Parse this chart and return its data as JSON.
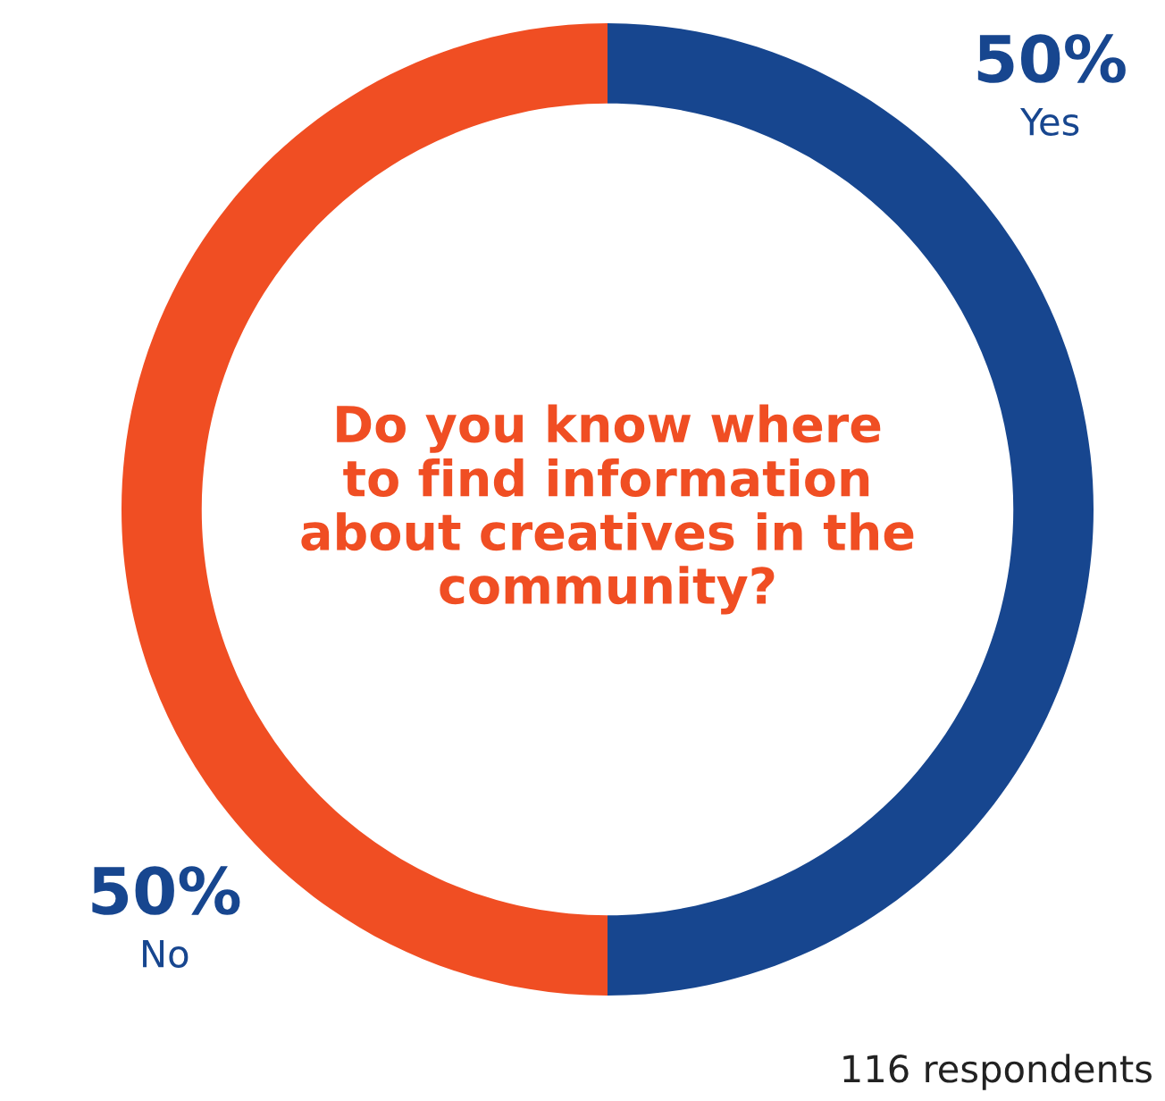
{
  "chart_data": {
    "type": "donut",
    "title": "Do you know where\nto find information\nabout creatives in the\ncommunity?",
    "categories": [
      "Yes",
      "No"
    ],
    "values": [
      50,
      50
    ],
    "colors": [
      "#17468f",
      "#f04e23"
    ],
    "value_labels": [
      "50%",
      "50%"
    ],
    "legend": false,
    "annotations": [
      "116 respondents"
    ]
  }
}
